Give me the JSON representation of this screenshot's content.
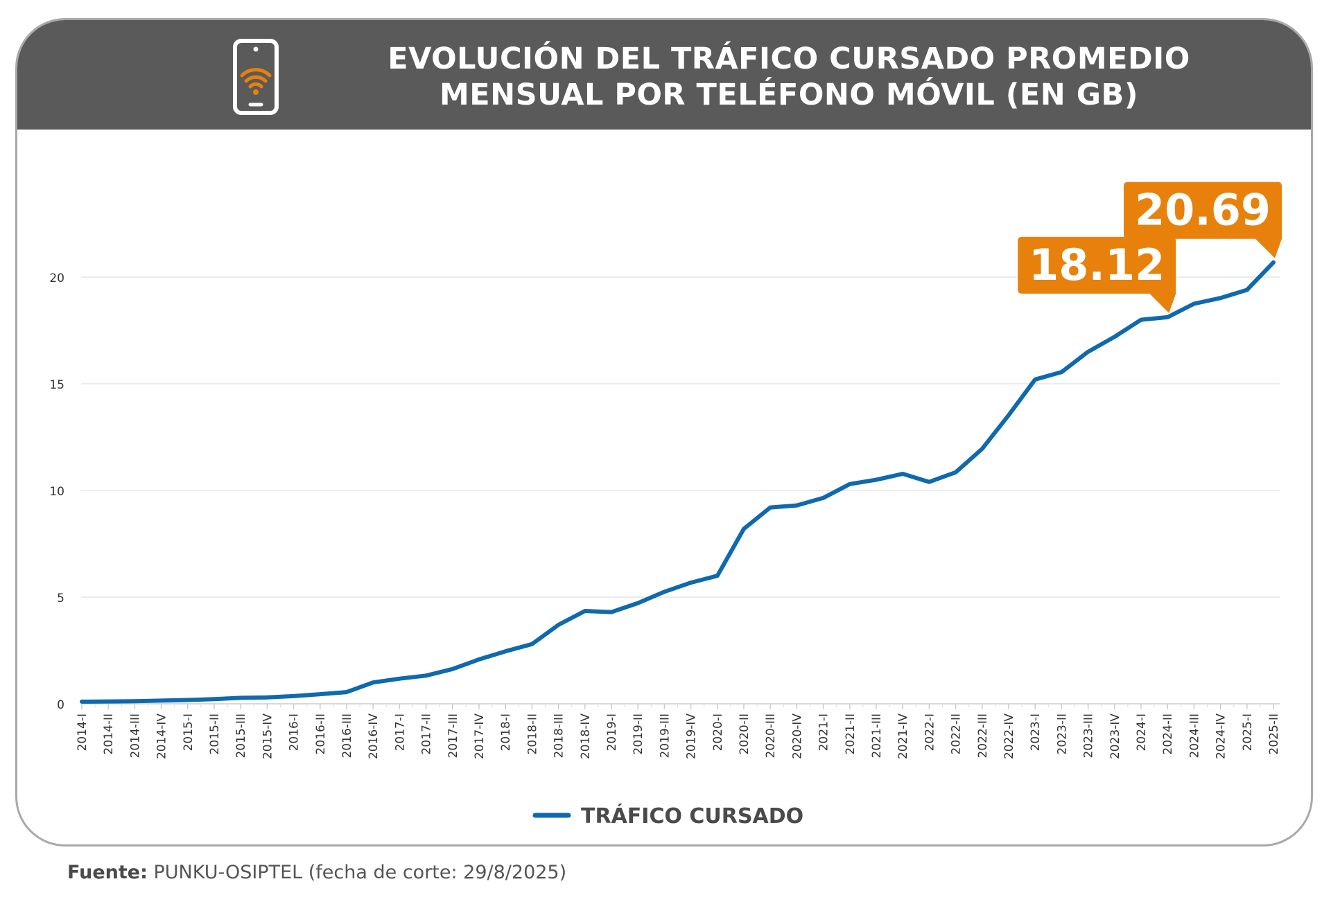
{
  "header": {
    "title_line1": "EVOLUCIÓN DEL TRÁFICO CURSADO PROMEDIO",
    "title_line2": "MENSUAL POR TELÉFONO MÓVIL (EN GB)",
    "icon": "smartphone-wifi-icon"
  },
  "footer": {
    "source_label": "Fuente:",
    "source_text": "PUNKU-OSIPTEL (fecha de corte: 29/8/2025)"
  },
  "colors": {
    "header_bg": "#5a5a5a",
    "line": "#0f69ae",
    "callout": "#e8810c",
    "grid": "#e6e6e6",
    "axis_text": "#333333"
  },
  "chart_data": {
    "type": "line",
    "title": "EVOLUCIÓN DEL TRÁFICO CURSADO PROMEDIO MENSUAL POR TELÉFONO MÓVIL (EN GB)",
    "xlabel": "",
    "ylabel": "",
    "ylim": [
      0,
      22
    ],
    "yticks": [
      0,
      5,
      10,
      15,
      20
    ],
    "grid": "horizontal",
    "legend_position": "bottom-center",
    "categories": [
      "2014-I",
      "2014-II",
      "2014-III",
      "2014-IV",
      "2015-I",
      "2015-II",
      "2015-III",
      "2015-IV",
      "2016-I",
      "2016-II",
      "2016-III",
      "2016-IV",
      "2017-I",
      "2017-II",
      "2017-III",
      "2017-IV",
      "2018-I",
      "2018-II",
      "2018-III",
      "2018-IV",
      "2019-I",
      "2019-II",
      "2019-III",
      "2019-IV",
      "2020-I",
      "2020-II",
      "2020-III",
      "2020-IV",
      "2021-I",
      "2021-II",
      "2021-III",
      "2021-IV",
      "2022-I",
      "2022-II",
      "2022-III",
      "2022-IV",
      "2023-I",
      "2023-II",
      "2023-III",
      "2023-IV",
      "2024-I",
      "2024-II",
      "2024-III",
      "2024-IV",
      "2025-I",
      "2025-II"
    ],
    "series": [
      {
        "name": "TRÁFICO CURSADO",
        "values": [
          0.1,
          0.11,
          0.12,
          0.15,
          0.18,
          0.22,
          0.28,
          0.3,
          0.36,
          0.45,
          0.55,
          1.0,
          1.18,
          1.32,
          1.63,
          2.08,
          2.46,
          2.8,
          3.7,
          4.35,
          4.3,
          4.72,
          5.25,
          5.68,
          6.0,
          8.2,
          9.2,
          9.3,
          9.65,
          10.3,
          10.5,
          10.78,
          10.4,
          10.85,
          11.95,
          13.53,
          15.2,
          15.55,
          16.5,
          17.2,
          18.0,
          18.12,
          18.75,
          19.02,
          19.4,
          20.69
        ]
      }
    ],
    "annotations": [
      {
        "category": "2024-II",
        "value": 18.12,
        "label": "18.12"
      },
      {
        "category": "2025-II",
        "value": 20.69,
        "label": "20.69"
      }
    ]
  }
}
